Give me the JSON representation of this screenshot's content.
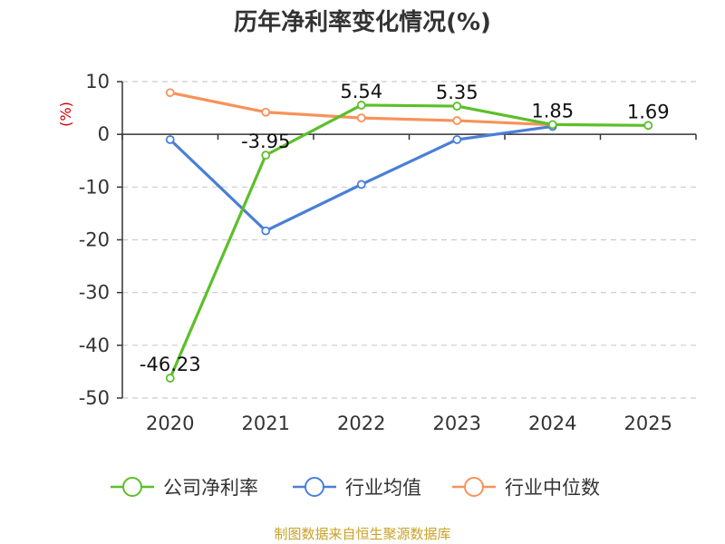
{
  "chart_data": {
    "type": "line",
    "title": "历年净利率变化情况(%)",
    "ylabel": "(%)",
    "categories": [
      "2020",
      "2021",
      "2022",
      "2023",
      "2024",
      "2025"
    ],
    "ylim": [
      -50,
      10
    ],
    "yticks": [
      10,
      0,
      -10,
      -20,
      -30,
      -40,
      -50
    ],
    "grid": true,
    "legend_position": "bottom",
    "series": [
      {
        "name": "公司净利率",
        "color": "#5cbf2a",
        "values": [
          -46.23,
          -3.95,
          5.54,
          5.35,
          1.85,
          1.69
        ],
        "labels": [
          "-46.23",
          "-3.95",
          "5.54",
          "5.35",
          "1.85",
          "1.69"
        ]
      },
      {
        "name": "行业均值",
        "color": "#4a7fd6",
        "values": [
          -1.0,
          -18.3,
          -9.5,
          -1.0,
          1.5,
          null
        ]
      },
      {
        "name": "行业中位数",
        "color": "#f7925a",
        "values": [
          7.9,
          4.2,
          3.1,
          2.6,
          1.8,
          null
        ]
      }
    ],
    "source": "制图数据来自恒生聚源数据库"
  }
}
